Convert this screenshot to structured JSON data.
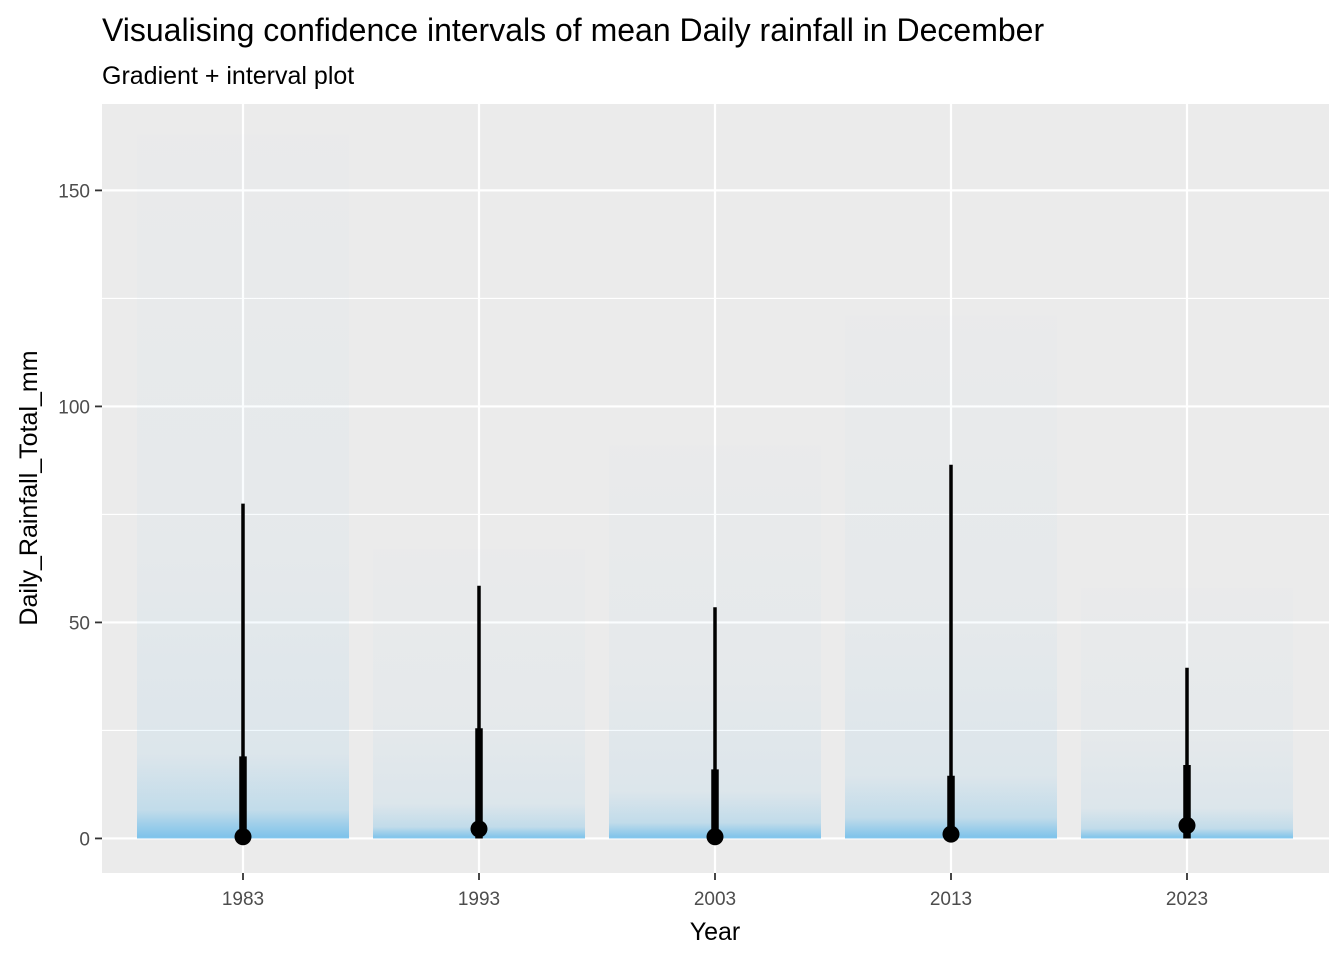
{
  "chart_data": {
    "type": "gradient-interval",
    "title": "Visualising confidence intervals of mean Daily rainfall in December",
    "subtitle": "Gradient + interval plot",
    "xlabel": "Year",
    "ylabel": "Daily_Rainfall_Total_mm",
    "categories": [
      "1983",
      "1993",
      "2003",
      "2013",
      "2023"
    ],
    "ylim": [
      -8,
      170
    ],
    "yticks": [
      0,
      50,
      100,
      150
    ],
    "point": [
      0.4,
      2.2,
      0.4,
      1.0,
      3.0
    ],
    "interval_thick": [
      [
        0,
        19
      ],
      [
        0,
        25.5
      ],
      [
        0,
        16
      ],
      [
        0,
        14.5
      ],
      [
        0,
        17
      ]
    ],
    "interval_thin": [
      [
        0,
        77.5
      ],
      [
        0,
        58.5
      ],
      [
        0,
        53.5
      ],
      [
        0,
        86.5
      ],
      [
        0,
        39.5
      ]
    ],
    "gradient_max": [
      163,
      67,
      91,
      121,
      58
    ],
    "grid": true,
    "colors": {
      "panel": "#ebebeb",
      "grid": "#ffffff",
      "gradient": "#56b4e9",
      "interval": "#000000"
    }
  }
}
